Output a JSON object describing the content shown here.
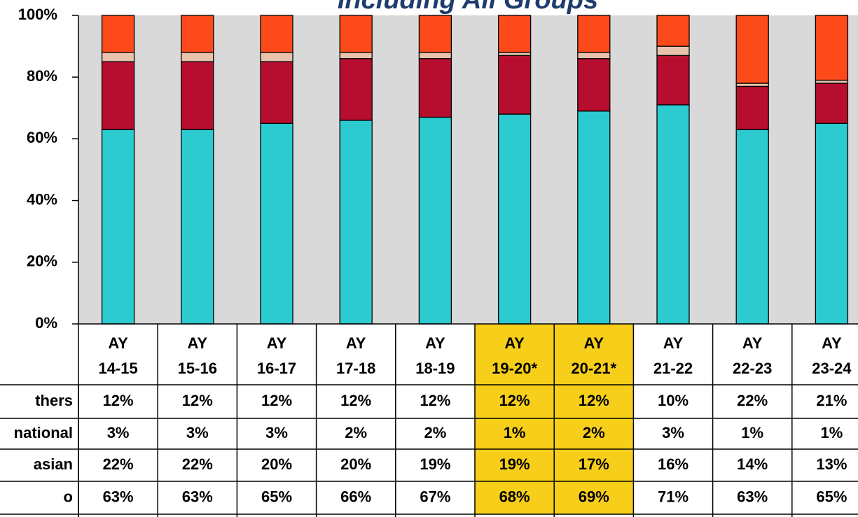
{
  "chart_data": {
    "type": "bar",
    "stacked": true,
    "title": "Including All Groups",
    "title_color": "#1f3c6e",
    "plot_background": "#d9d9d9",
    "categories": [
      [
        "AY",
        "14-15"
      ],
      [
        "AY",
        "15-16"
      ],
      [
        "AY",
        "16-17"
      ],
      [
        "AY",
        "17-18"
      ],
      [
        "AY",
        "18-19"
      ],
      [
        "AY",
        "19-20*"
      ],
      [
        "AY",
        "20-21*"
      ],
      [
        "AY",
        "21-22"
      ],
      [
        "AY",
        "22-23"
      ],
      [
        "AY",
        "23-24"
      ]
    ],
    "highlighted": [
      false,
      false,
      false,
      false,
      false,
      true,
      true,
      false,
      false,
      false
    ],
    "highlight_color": "#f7cf1a",
    "ylim": [
      0,
      100
    ],
    "yticks": [
      {
        "value": 0,
        "label": "0%"
      },
      {
        "value": 20,
        "label": "20%"
      },
      {
        "value": 40,
        "label": "40%"
      },
      {
        "value": 60,
        "label": "60%"
      },
      {
        "value": 80,
        "label": "80%"
      },
      {
        "value": 100,
        "label": "100%"
      }
    ],
    "series": [
      {
        "name": "thers",
        "color": "#fc4a1a",
        "values": [
          12,
          12,
          12,
          12,
          12,
          12,
          12,
          10,
          22,
          21
        ],
        "value_labels": [
          "12%",
          "12%",
          "12%",
          "12%",
          "12%",
          "12%",
          "12%",
          "10%",
          "22%",
          "21%"
        ]
      },
      {
        "name": "national",
        "color": "#e8c2aa",
        "values": [
          3,
          3,
          3,
          2,
          2,
          1,
          2,
          3,
          1,
          1
        ],
        "value_labels": [
          "3%",
          "3%",
          "3%",
          "2%",
          "2%",
          "1%",
          "2%",
          "3%",
          "1%",
          "1%"
        ]
      },
      {
        "name": "asian",
        "color": "#b70e2f",
        "values": [
          22,
          22,
          20,
          20,
          19,
          19,
          17,
          16,
          14,
          13
        ],
        "value_labels": [
          "22%",
          "22%",
          "20%",
          "20%",
          "19%",
          "19%",
          "17%",
          "16%",
          "14%",
          "13%"
        ]
      },
      {
        "name": "o",
        "color": "#2bcbd0",
        "values": [
          63,
          63,
          65,
          66,
          67,
          68,
          69,
          71,
          63,
          65
        ],
        "value_labels": [
          "63%",
          "63%",
          "65%",
          "66%",
          "67%",
          "68%",
          "69%",
          "71%",
          "63%",
          "65%"
        ]
      }
    ]
  }
}
